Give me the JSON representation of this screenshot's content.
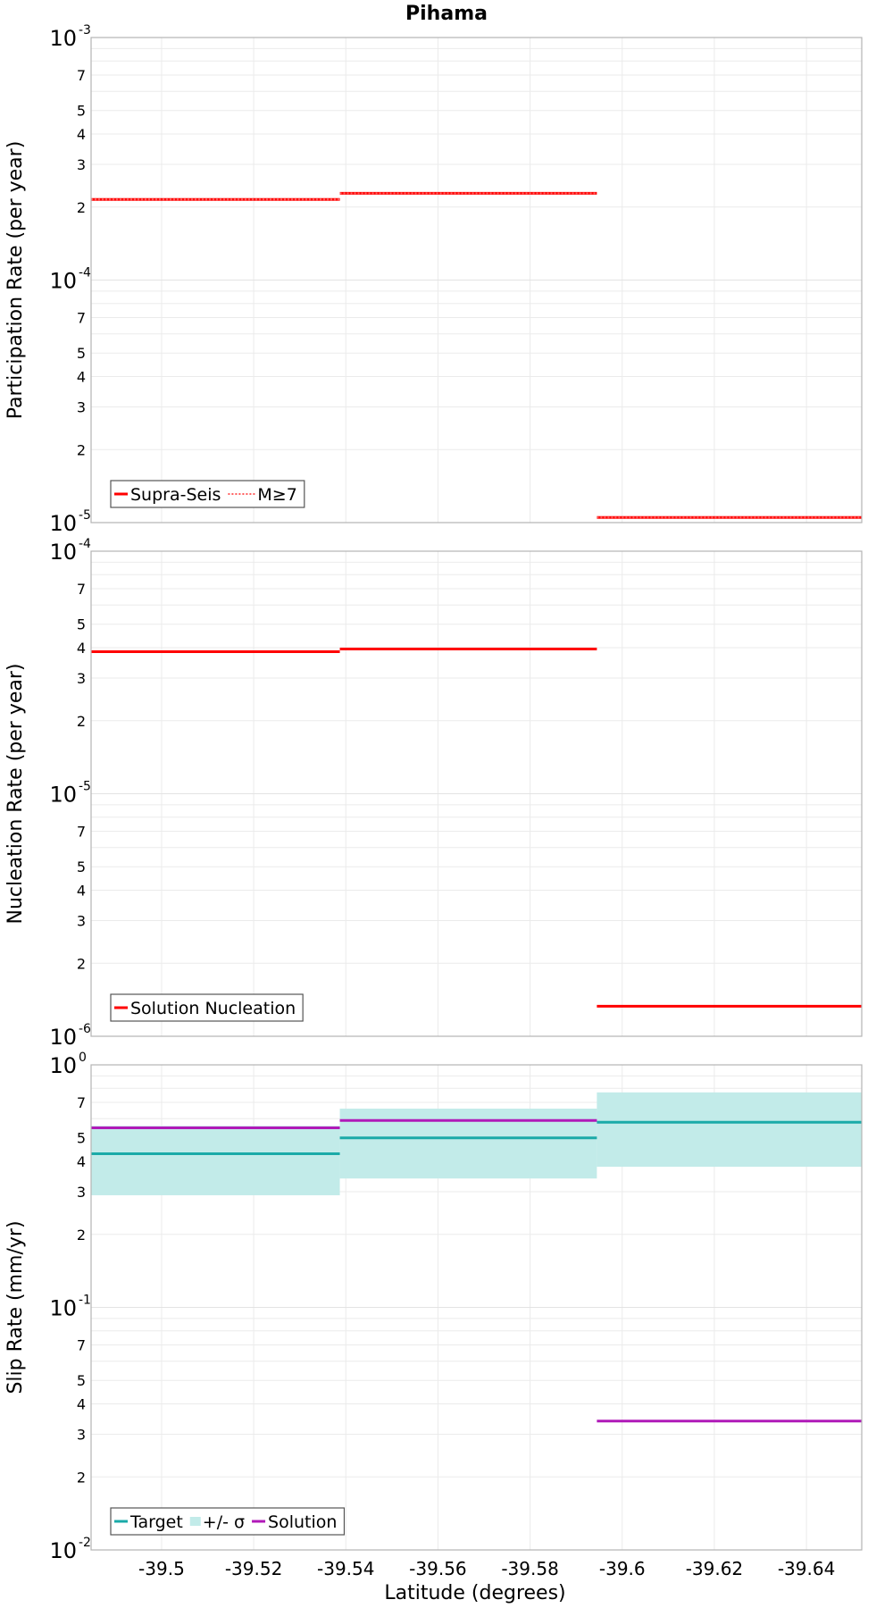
{
  "chart_data": {
    "type": "line",
    "title": "Pihama",
    "xlabel": "Latitude (degrees)",
    "xlim": [
      -39.4847,
      -39.652
    ],
    "x_ticks": [
      -39.5,
      -39.52,
      -39.54,
      -39.56,
      -39.58,
      -39.6,
      -39.62,
      -39.64
    ],
    "x_tick_labels": [
      "-39.5",
      "-39.52",
      "-39.54",
      "-39.56",
      "-39.58",
      "-39.6",
      "-39.62",
      "-39.64"
    ],
    "grid": true,
    "panels": [
      {
        "ylabel": "Participation Rate (per year)",
        "yscale": "log",
        "ylim": [
          1e-05,
          0.001
        ],
        "y_major_ticks": [
          {
            "base": "10",
            "exp": "-3"
          },
          {
            "base": "10",
            "exp": "-4"
          },
          {
            "base": "10",
            "exp": "-5"
          }
        ],
        "y_minor_labels": [
          "7",
          "5",
          "4",
          "3",
          "2"
        ],
        "legend": {
          "placement": "bottom-left",
          "entries": [
            {
              "label": "Supra-Seis",
              "style": "solid",
              "color": "#ff0000"
            },
            {
              "label": "M≥7",
              "style": "dotted",
              "color": "#ff0000"
            }
          ]
        },
        "series": [
          {
            "name": "Supra-Seis",
            "color": "#ff0000",
            "style": "solid",
            "segments": [
              {
                "x0": -39.4847,
                "x1": -39.5387,
                "y": 0.000215
              },
              {
                "x0": -39.5387,
                "x1": -39.5945,
                "y": 0.000228
              },
              {
                "x0": -39.5945,
                "x1": -39.652,
                "y": 1.05e-05
              }
            ]
          },
          {
            "name": "M≥7",
            "color": "#ff0000",
            "style": "dotted",
            "segments": [
              {
                "x0": -39.4847,
                "x1": -39.5387,
                "y": 0.000215
              },
              {
                "x0": -39.5387,
                "x1": -39.5945,
                "y": 0.000228
              },
              {
                "x0": -39.5945,
                "x1": -39.652,
                "y": 1.05e-05
              }
            ]
          }
        ]
      },
      {
        "ylabel": "Nucleation Rate (per year)",
        "yscale": "log",
        "ylim": [
          1e-06,
          0.0001
        ],
        "y_major_ticks": [
          {
            "base": "10",
            "exp": "-4"
          },
          {
            "base": "10",
            "exp": "-5"
          },
          {
            "base": "10",
            "exp": "-6"
          }
        ],
        "y_minor_labels": [
          "7",
          "5",
          "4",
          "3",
          "2"
        ],
        "legend": {
          "placement": "bottom-left",
          "entries": [
            {
              "label": "Solution Nucleation",
              "style": "solid",
              "color": "#ff0000"
            }
          ]
        },
        "series": [
          {
            "name": "Solution Nucleation",
            "color": "#ff0000",
            "style": "solid",
            "segments": [
              {
                "x0": -39.4847,
                "x1": -39.5387,
                "y": 3.85e-05
              },
              {
                "x0": -39.5387,
                "x1": -39.5945,
                "y": 3.95e-05
              },
              {
                "x0": -39.5945,
                "x1": -39.652,
                "y": 1.33e-06
              }
            ]
          }
        ]
      },
      {
        "ylabel": "Slip Rate (mm/yr)",
        "yscale": "log",
        "ylim": [
          0.01,
          1
        ],
        "y_major_ticks": [
          {
            "base": "10",
            "exp": "0"
          },
          {
            "base": "10",
            "exp": "-1"
          },
          {
            "base": "10",
            "exp": "-2"
          }
        ],
        "y_minor_labels": [
          "7",
          "5",
          "4",
          "3",
          "2"
        ],
        "legend": {
          "placement": "bottom-left",
          "entries": [
            {
              "label": "Target",
              "style": "solid",
              "color": "#1aaaa8"
            },
            {
              "label": "+/- σ",
              "style": "band",
              "color": "#c2ebe9"
            },
            {
              "label": "Solution",
              "style": "solid",
              "color": "#b01ab8"
            }
          ]
        },
        "bands": [
          {
            "name": "+/- σ",
            "color": "#c2ebe9",
            "segments": [
              {
                "x0": -39.4847,
                "x1": -39.5387,
                "lo": 0.29,
                "hi": 0.56
              },
              {
                "x0": -39.5387,
                "x1": -39.5945,
                "lo": 0.34,
                "hi": 0.66
              },
              {
                "x0": -39.5945,
                "x1": -39.652,
                "lo": 0.38,
                "hi": 0.77
              }
            ]
          }
        ],
        "series": [
          {
            "name": "Target",
            "color": "#1aaaa8",
            "style": "solid",
            "segments": [
              {
                "x0": -39.4847,
                "x1": -39.5387,
                "y": 0.43
              },
              {
                "x0": -39.5387,
                "x1": -39.5945,
                "y": 0.5
              },
              {
                "x0": -39.5945,
                "x1": -39.652,
                "y": 0.58
              }
            ]
          },
          {
            "name": "Solution",
            "color": "#b01ab8",
            "style": "solid",
            "segments": [
              {
                "x0": -39.4847,
                "x1": -39.5387,
                "y": 0.55
              },
              {
                "x0": -39.5387,
                "x1": -39.5945,
                "y": 0.59
              },
              {
                "x0": -39.5945,
                "x1": -39.652,
                "y": 0.034
              }
            ]
          }
        ]
      }
    ]
  }
}
